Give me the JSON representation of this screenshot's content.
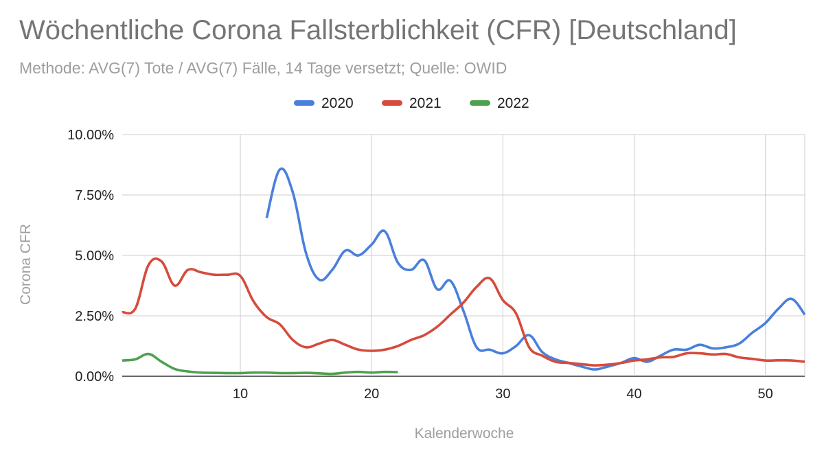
{
  "chart_data": {
    "type": "line",
    "title": "Wöchentliche Corona Fallsterblichkeit (CFR) [Deutschland]",
    "subtitle": "Methode: AVG(7) Tote / AVG(7) Fälle, 14 Tage versetzt; Quelle: OWID",
    "xlabel": "Kalenderwoche",
    "ylabel": "Corona CFR",
    "xlim": [
      1,
      53
    ],
    "ylim": [
      0,
      10
    ],
    "x_ticks": [
      10,
      20,
      30,
      40,
      50
    ],
    "x_tick_labels": [
      "10",
      "20",
      "30",
      "40",
      "50"
    ],
    "y_ticks": [
      0,
      2.5,
      5,
      7.5,
      10
    ],
    "y_tick_labels": [
      "0.00%",
      "2.50%",
      "5.00%",
      "7.50%",
      "10.00%"
    ],
    "grid": true,
    "legend_position": "top",
    "series": [
      {
        "name": "2020",
        "color": "#4a7fdc",
        "x": [
          12,
          13,
          14,
          15,
          16,
          17,
          18,
          19,
          20,
          21,
          22,
          23,
          24,
          25,
          26,
          27,
          28,
          29,
          30,
          31,
          32,
          33,
          34,
          35,
          36,
          37,
          38,
          39,
          40,
          41,
          42,
          43,
          44,
          45,
          46,
          47,
          48,
          49,
          50,
          51,
          52,
          53
        ],
        "y": [
          6.55,
          8.55,
          7.6,
          5.1,
          4.0,
          4.4,
          5.2,
          5.0,
          5.45,
          6.0,
          4.7,
          4.4,
          4.8,
          3.6,
          3.95,
          2.7,
          1.2,
          1.1,
          0.95,
          1.25,
          1.7,
          1.0,
          0.7,
          0.55,
          0.4,
          0.28,
          0.4,
          0.55,
          0.75,
          0.6,
          0.85,
          1.1,
          1.1,
          1.3,
          1.15,
          1.2,
          1.35,
          1.8,
          2.2,
          2.8,
          3.2,
          2.55
        ]
      },
      {
        "name": "2021",
        "color": "#d64b3d",
        "x": [
          1,
          2,
          3,
          4,
          5,
          6,
          7,
          8,
          9,
          10,
          11,
          12,
          13,
          14,
          15,
          16,
          17,
          18,
          19,
          20,
          21,
          22,
          23,
          24,
          25,
          26,
          27,
          28,
          29,
          30,
          31,
          32,
          33,
          34,
          35,
          36,
          37,
          38,
          39,
          40,
          41,
          42,
          43,
          44,
          45,
          46,
          47,
          48,
          49,
          50,
          51,
          52,
          53
        ],
        "y": [
          2.65,
          2.8,
          4.6,
          4.75,
          3.75,
          4.4,
          4.3,
          4.2,
          4.2,
          4.15,
          3.1,
          2.45,
          2.15,
          1.5,
          1.2,
          1.35,
          1.5,
          1.3,
          1.1,
          1.05,
          1.1,
          1.25,
          1.5,
          1.7,
          2.05,
          2.55,
          3.05,
          3.7,
          4.05,
          3.15,
          2.6,
          1.2,
          0.85,
          0.6,
          0.55,
          0.5,
          0.45,
          0.48,
          0.55,
          0.65,
          0.7,
          0.78,
          0.8,
          0.95,
          0.95,
          0.9,
          0.92,
          0.78,
          0.72,
          0.65,
          0.66,
          0.65,
          0.6
        ]
      },
      {
        "name": "2022",
        "color": "#4ea14f",
        "x": [
          1,
          2,
          3,
          4,
          5,
          6,
          7,
          8,
          9,
          10,
          11,
          12,
          13,
          14,
          15,
          16,
          17,
          18,
          19,
          20,
          21,
          22
        ],
        "y": [
          0.65,
          0.7,
          0.92,
          0.6,
          0.3,
          0.2,
          0.15,
          0.14,
          0.13,
          0.13,
          0.15,
          0.15,
          0.13,
          0.13,
          0.14,
          0.12,
          0.1,
          0.15,
          0.18,
          0.15,
          0.18,
          0.17
        ]
      }
    ]
  }
}
